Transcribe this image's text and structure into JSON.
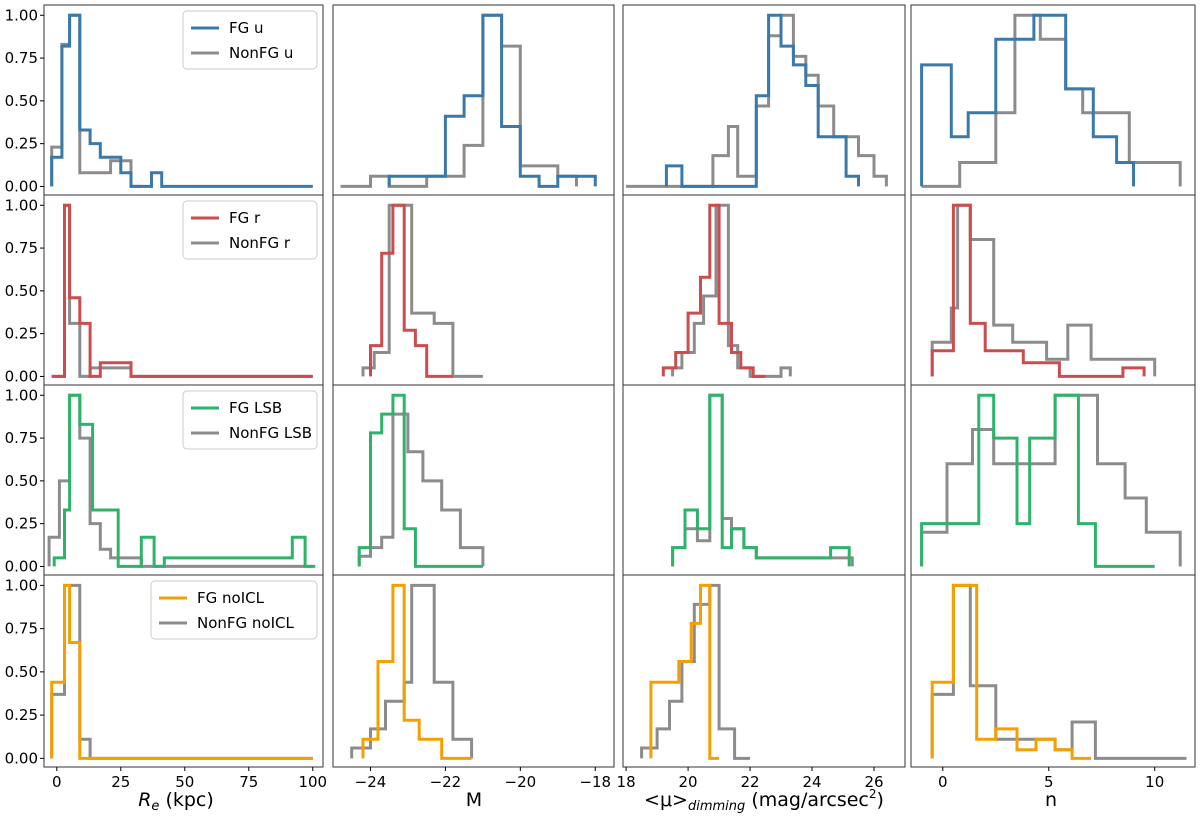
{
  "colors": {
    "u": "#3a79a8",
    "r": "#cc4d4d",
    "LSB": "#2eb36b",
    "noICL": "#f5a000",
    "nonfg": "#8c8c8c"
  },
  "chart_data": {
    "type": "step-histogram-grid",
    "rows": [
      "u",
      "r",
      "LSB",
      "noICL"
    ],
    "columns": [
      {
        "key": "Re",
        "xlabel_main": "R",
        "xlabel_sub": "e",
        "xlabel_rest": " (kpc)",
        "xlim": [
          -5,
          104
        ],
        "xticks": [
          0,
          25,
          50,
          75,
          100
        ]
      },
      {
        "key": "M",
        "xlabel": "M",
        "xlim": [
          -25.0,
          -17.5
        ],
        "xticks": [
          -24,
          -22,
          -20,
          -18
        ]
      },
      {
        "key": "mu",
        "xlabel_pre": "<μ>",
        "xlabel_sub": "dimming",
        "xlabel_rest": " (mag/arcsec",
        "xlabel_sup": "2",
        "xlabel_end": ")",
        "xlim": [
          17.9,
          27.0
        ],
        "xticks": [
          18,
          20,
          22,
          24,
          26
        ]
      },
      {
        "key": "n",
        "xlabel": "n",
        "xlim": [
          -1.5,
          11.9
        ],
        "xticks": [
          0,
          5,
          10
        ]
      }
    ],
    "ylim": [
      -0.05,
      1.06
    ],
    "yticks": [
      0.0,
      0.25,
      0.5,
      0.75,
      1.0
    ],
    "ytick_labels": [
      "0.00",
      "0.25",
      "0.50",
      "0.75",
      "1.00"
    ],
    "legends": [
      {
        "row": 0,
        "fg": "FG u",
        "nonfg": "NonFG u"
      },
      {
        "row": 1,
        "fg": "FG r",
        "nonfg": "NonFG r"
      },
      {
        "row": 2,
        "fg": "FG LSB",
        "nonfg": "NonFG LSB"
      },
      {
        "row": 3,
        "fg": "FG noICL",
        "nonfg": "NonFG noICL"
      }
    ],
    "panels": [
      [
        {
          "fg": {
            "edges": [
              -2,
              2,
              5,
              9,
              13,
              17,
              21,
              25,
              29,
              33,
              37,
              41,
              45,
              100
            ],
            "values": [
              0.17,
              0.82,
              1.0,
              0.33,
              0.25,
              0.17,
              0.17,
              0.08,
              0,
              0,
              0.08,
              0,
              0
            ]
          },
          "nonfg": {
            "edges": [
              -2,
              2,
              5,
              9,
              13,
              17,
              21,
              25,
              29,
              33
            ],
            "values": [
              0.23,
              0.83,
              1.0,
              0.08,
              0.08,
              0.08,
              0.15,
              0.15,
              0
            ]
          }
        },
        {
          "fg": {
            "edges": [
              -23.5,
              -22.0,
              -21.5,
              -21.0,
              -20.5,
              -20.0,
              -19.5,
              -19.0,
              -18.5,
              -18.0
            ],
            "values": [
              0.06,
              0.41,
              0.53,
              1.0,
              0.35,
              0.06,
              0,
              0.06,
              0.06
            ]
          },
          "nonfg": {
            "edges": [
              -24.8,
              -24.0,
              -23.5,
              -22.5,
              -21.5,
              -21.0,
              -20.5,
              -20.0,
              -19.5,
              -19.0,
              -18.5
            ],
            "values": [
              0,
              0.06,
              0,
              0.06,
              0.24,
              1.0,
              0.82,
              0.12,
              0.12,
              0.06
            ]
          }
        },
        {
          "fg": {
            "edges": [
              19.3,
              19.8,
              22.2,
              22.6,
              23.0,
              23.4,
              23.8,
              24.2,
              24.7,
              25.1,
              25.5
            ],
            "values": [
              0.12,
              0,
              0.53,
              1.0,
              0.82,
              0.71,
              0.59,
              0.29,
              0.29,
              0.06
            ]
          },
          "nonfg": {
            "edges": [
              18.0,
              20.8,
              21.3,
              21.6,
              22.2,
              22.6,
              23.0,
              23.4,
              23.8,
              24.2,
              24.7,
              25.1,
              25.5,
              26.0,
              26.4
            ],
            "values": [
              0,
              0.18,
              0.35,
              0.06,
              0.47,
              0.88,
              1.0,
              0.76,
              0.65,
              0.47,
              0.29,
              0.29,
              0.18,
              0.06
            ]
          }
        },
        {
          "fg": {
            "edges": [
              -1.0,
              0.4,
              1.2,
              2.5,
              3.4,
              4.3,
              5.8,
              7.1,
              8.2,
              9.0
            ],
            "values": [
              0.71,
              0.29,
              0.43,
              0.86,
              0.86,
              1.0,
              0.57,
              0.29,
              0.14
            ]
          },
          "nonfg": {
            "edges": [
              -1.0,
              0.8,
              2.5,
              3.4,
              4.6,
              5.8,
              6.6,
              8.8,
              11.2
            ],
            "values": [
              0,
              0.14,
              0.43,
              1.0,
              0.86,
              0.57,
              0.43,
              0.14
            ]
          }
        }
      ],
      [
        {
          "fg": {
            "edges": [
              -2,
              3,
              5,
              9,
              13,
              17,
              29,
              33,
              100
            ],
            "values": [
              0,
              1.0,
              0.46,
              0.31,
              0,
              0.08,
              0,
              0
            ]
          },
          "nonfg": {
            "edges": [
              -2,
              3,
              5,
              9,
              13,
              29,
              33,
              100
            ],
            "values": [
              0,
              1.0,
              0.31,
              0,
              0.05,
              0,
              0
            ]
          }
        },
        {
          "fg": {
            "edges": [
              -24.0,
              -23.7,
              -23.4,
              -23.1,
              -22.8,
              -22.5,
              -22.2,
              -21.8
            ],
            "values": [
              0.18,
              0.72,
              1.0,
              0.27,
              0.18,
              0,
              0
            ]
          },
          "nonfg": {
            "edges": [
              -24.2,
              -23.9,
              -23.5,
              -23.2,
              -22.9,
              -22.3,
              -21.8,
              -21.0
            ],
            "values": [
              0.05,
              0.14,
              1.0,
              1.0,
              0.37,
              0.31,
              0
            ]
          }
        },
        {
          "fg": {
            "edges": [
              19.2,
              19.6,
              20.0,
              20.4,
              20.7,
              21.0,
              21.4,
              21.7,
              22.1,
              22.5
            ],
            "values": [
              0.05,
              0.14,
              0.37,
              0.58,
              1.0,
              0.31,
              0.14,
              0.05,
              0
            ]
          },
          "nonfg": {
            "edges": [
              19.5,
              19.8,
              20.2,
              20.5,
              20.9,
              21.3,
              21.6,
              22.0,
              22.4,
              23.0,
              23.3
            ],
            "values": [
              0.05,
              0.14,
              0.31,
              0.47,
              1.0,
              0.18,
              0.05,
              0,
              0,
              0.05
            ]
          }
        },
        {
          "fg": {
            "edges": [
              -0.5,
              0.5,
              1.3,
              2.0,
              3.0,
              3.8,
              4.6,
              5.5,
              6.2,
              7.0,
              8.5,
              9.5
            ],
            "values": [
              0.15,
              1.0,
              0.31,
              0.15,
              0.15,
              0.08,
              0.08,
              0,
              0,
              0,
              0.05
            ]
          },
          "nonfg": {
            "edges": [
              -0.5,
              0.4,
              0.7,
              1.3,
              2.4,
              3.3,
              4.1,
              4.9,
              5.9,
              7.0,
              8.0,
              9.0,
              10.0
            ],
            "values": [
              0.2,
              0.4,
              1.0,
              0.8,
              0.3,
              0.2,
              0.2,
              0.1,
              0.3,
              0.1,
              0.1,
              0.1
            ]
          }
        }
      ],
      [
        {
          "fg": {
            "edges": [
              -1,
              3,
              5,
              9,
              14,
              18,
              24,
              33,
              38,
              42,
              86,
              92,
              97,
              101
            ],
            "values": [
              0.05,
              0.33,
              1.0,
              0.83,
              0.33,
              0.33,
              0,
              0.17,
              0,
              0.05,
              0.05,
              0.17,
              0
            ]
          },
          "nonfg": {
            "edges": [
              -3,
              1,
              5,
              9,
              13,
              17,
              21,
              25,
              33,
              100
            ],
            "values": [
              0.17,
              0.5,
              1.0,
              0.75,
              0.25,
              0.1,
              0.05,
              0.05,
              0
            ]
          }
        },
        {
          "fg": {
            "edges": [
              -24.3,
              -24.0,
              -23.7,
              -23.4,
              -23.1,
              -22.8,
              -22.5,
              -21.0
            ],
            "values": [
              0.11,
              0.78,
              0.89,
              1.0,
              0.22,
              0,
              0
            ]
          },
          "nonfg": {
            "edges": [
              -24.3,
              -24.0,
              -23.7,
              -23.4,
              -23.0,
              -22.6,
              -22.1,
              -21.6,
              -21.0
            ],
            "values": [
              0.06,
              0.11,
              0.17,
              0.89,
              0.67,
              0.5,
              0.33,
              0.11
            ]
          }
        },
        {
          "fg": {
            "edges": [
              19.5,
              19.9,
              20.3,
              20.7,
              21.1,
              21.4,
              21.8,
              22.2,
              23.0,
              24.6,
              25.2
            ],
            "values": [
              0.11,
              0.33,
              0.22,
              1.0,
              0.11,
              0.22,
              0.11,
              0.05,
              0.05,
              0.11
            ]
          },
          "nonfg": {
            "edges": [
              19.5,
              19.9,
              20.3,
              20.7,
              21.1,
              21.4,
              21.8,
              22.2,
              22.6,
              23.2,
              24.8,
              25.3
            ],
            "values": [
              0.11,
              0.22,
              0.15,
              1.0,
              0.28,
              0.22,
              0.11,
              0.05,
              0.05,
              0.05,
              0.05
            ]
          }
        },
        {
          "fg": {
            "edges": [
              -1.0,
              1.7,
              2.4,
              3.5,
              4.1,
              5.3,
              6.4,
              7.2,
              10.0
            ],
            "values": [
              0.25,
              1.0,
              0.75,
              0.25,
              0.75,
              1.0,
              0.25,
              0
            ]
          },
          "nonfg": {
            "edges": [
              -1.0,
              0.2,
              1.4,
              2.4,
              3.1,
              4.1,
              5.3,
              7.3,
              8.6,
              9.6,
              11.2
            ],
            "values": [
              0.2,
              0.6,
              0.8,
              0.6,
              0.6,
              0.6,
              1.0,
              0.6,
              0.4,
              0.2
            ]
          }
        }
      ],
      [
        {
          "fg": {
            "edges": [
              -2,
              3,
              5,
              9,
              13,
              100
            ],
            "values": [
              0.44,
              1.0,
              0.67,
              0,
              0
            ]
          },
          "nonfg": {
            "edges": [
              -2,
              3,
              5,
              9,
              13,
              100
            ],
            "values": [
              0.37,
              1.0,
              1.0,
              0.11,
              0
            ]
          }
        },
        {
          "fg": {
            "edges": [
              -24.2,
              -23.8,
              -23.4,
              -23.1,
              -22.7,
              -22.1,
              -21.3
            ],
            "values": [
              0.11,
              0.56,
              1.0,
              0.22,
              0.11,
              0
            ]
          },
          "nonfg": {
            "edges": [
              -24.5,
              -24.0,
              -23.6,
              -23.1,
              -22.9,
              -22.3,
              -21.8,
              -21.3
            ],
            "values": [
              0.06,
              0.17,
              0.33,
              0.44,
              1.0,
              0.44,
              0.11
            ]
          }
        },
        {
          "fg": {
            "edges": [
              18.8,
              19.1,
              19.7,
              20.1,
              20.4,
              20.7,
              21.0
            ],
            "values": [
              0.44,
              0.44,
              0.56,
              0.78,
              1.0,
              0
            ]
          },
          "nonfg": {
            "edges": [
              18.5,
              19.0,
              19.4,
              19.8,
              20.2,
              20.7,
              21.0,
              21.5,
              22.0
            ],
            "values": [
              0.06,
              0.17,
              0.33,
              0.56,
              0.89,
              1.0,
              0.17,
              0
            ]
          }
        },
        {
          "fg": {
            "edges": [
              -0.5,
              0.5,
              1.6,
              2.5,
              3.5,
              4.4,
              5.3,
              6.1,
              7.0
            ],
            "values": [
              0.44,
              1.0,
              0.11,
              0.17,
              0.05,
              0.11,
              0.05,
              0
            ]
          },
          "nonfg": {
            "edges": [
              -0.5,
              0.5,
              1.3,
              2.5,
              3.4,
              4.3,
              5.3,
              6.1,
              7.2,
              11.5
            ],
            "values": [
              0.37,
              1.0,
              0.42,
              0.11,
              0.11,
              0.11,
              0.05,
              0.21,
              0
            ]
          }
        }
      ]
    ]
  }
}
